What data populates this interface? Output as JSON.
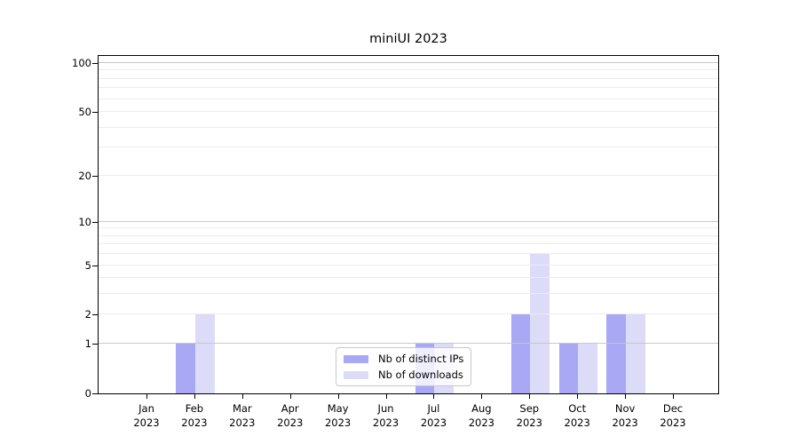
{
  "title": "miniUI 2023",
  "chart_data": {
    "type": "bar",
    "title": "miniUI 2023",
    "categories": [
      "Jan",
      "Feb",
      "Mar",
      "Apr",
      "May",
      "Jun",
      "Jul",
      "Aug",
      "Sep",
      "Oct",
      "Nov",
      "Dec"
    ],
    "category_year": "2023",
    "series": [
      {
        "name": "Nb of distinct IPs",
        "color": "#a8a8f4",
        "values": [
          0,
          1,
          0,
          0,
          0,
          0,
          1,
          0,
          2,
          1,
          2,
          0
        ]
      },
      {
        "name": "Nb of downloads",
        "color": "#dcdcf9",
        "values": [
          0,
          2,
          0,
          0,
          0,
          0,
          1,
          0,
          6,
          1,
          2,
          0
        ]
      }
    ],
    "y_axis": {
      "scale": "log10(1+x)",
      "ticks": [
        0,
        1,
        2,
        5,
        10,
        20,
        50,
        100
      ],
      "ylim": [
        0,
        113
      ]
    },
    "grid": {
      "major_lines": [
        1,
        10,
        100
      ],
      "minor_lines": [
        2,
        3,
        4,
        5,
        6,
        7,
        8,
        9,
        20,
        30,
        40,
        50,
        60,
        70,
        80,
        90
      ],
      "major_color": "#c8c8c8",
      "minor_color": "#ececec"
    },
    "legend": {
      "position": "lower center",
      "background": "rgba(255,255,255,0.8)",
      "border_color": "#c8c8c8"
    },
    "xlabel": "",
    "ylabel": ""
  }
}
